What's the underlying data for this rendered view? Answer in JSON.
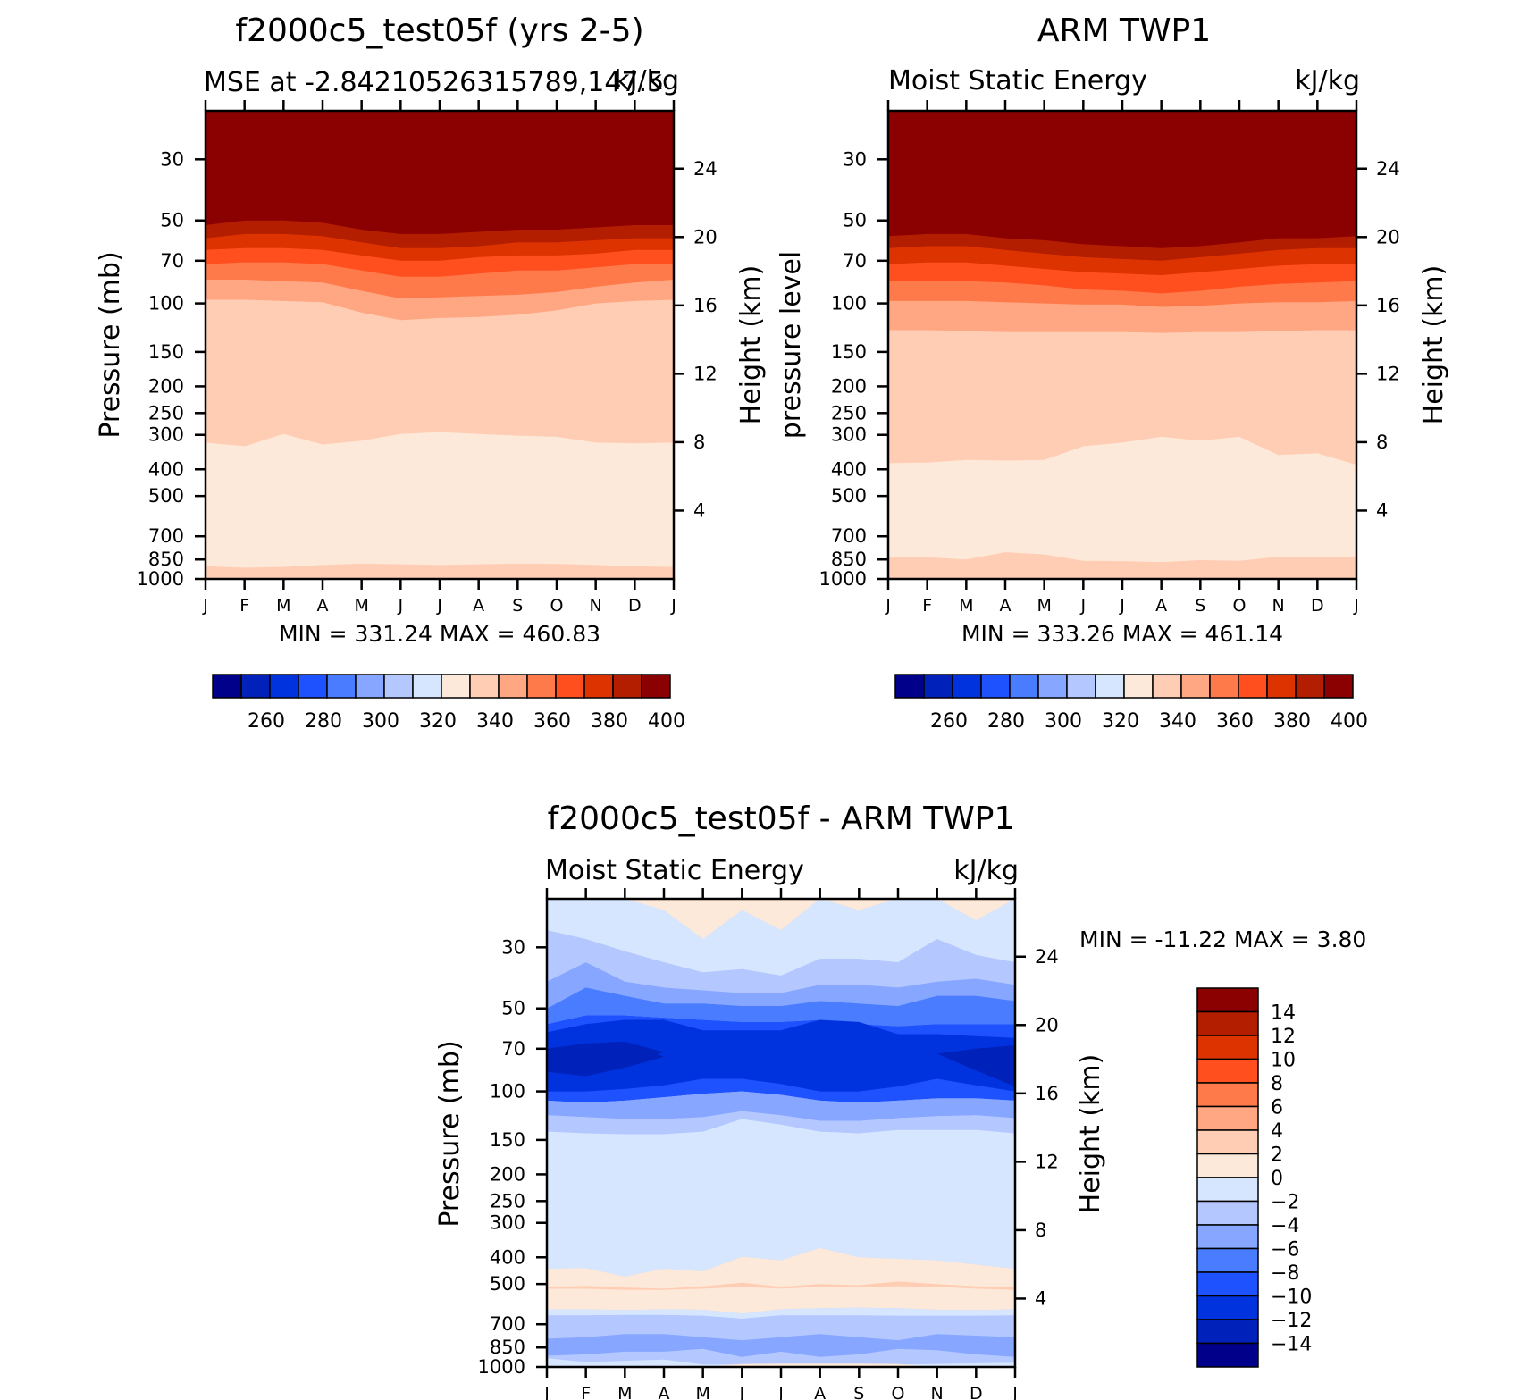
{
  "months": [
    "J",
    "F",
    "M",
    "A",
    "M",
    "J",
    "J",
    "A",
    "S",
    "O",
    "N",
    "D",
    "J"
  ],
  "pressure_ticks": [
    "30",
    "50",
    "70",
    "100",
    "150",
    "200",
    "250",
    "300",
    "400",
    "500",
    "700",
    "850",
    "1000"
  ],
  "height_ticks": [
    "24",
    "20",
    "16",
    "12",
    "8",
    "4"
  ],
  "colors": {
    "warm_scale": [
      "#00008b",
      "#0022bb",
      "#0033dd",
      "#1e52ff",
      "#4a7cff",
      "#86a6ff",
      "#b4c8ff",
      "#d6e6ff",
      "#fde9d9",
      "#ffcdb4",
      "#ffa682",
      "#ff7a4a",
      "#ff4f1e",
      "#dd3300",
      "#b31d00",
      "#8b0000"
    ],
    "diff_scale": [
      "#00008b",
      "#0022bb",
      "#0033dd",
      "#1e52ff",
      "#4a7cff",
      "#86a6ff",
      "#b4c8ff",
      "#d6e6ff",
      "#fde9d9",
      "#ffcdb4",
      "#ffa682",
      "#ff7a4a",
      "#ff4f1e",
      "#dd3300",
      "#b31d00",
      "#8b0000"
    ]
  },
  "chart_data": [
    {
      "type": "heatmap",
      "title": "f2000c5_test05f (yrs 2-5)",
      "subtitle_left": "MSE at -2.84210526315789,147.5",
      "subtitle_right": "kJ/kg",
      "ylabel": "Pressure (mb)",
      "ylabel_right": "Height (km)",
      "stats": "MIN = 331.24 MAX = 460.83",
      "colorbar_labels": [
        "260",
        "280",
        "300",
        "320",
        "340",
        "360",
        "380",
        "400"
      ],
      "boundaries_upper_to_lower": {
        "level_400": [
          52,
          50,
          50,
          51,
          54,
          56,
          56,
          55,
          54,
          54,
          53,
          52,
          52
        ],
        "level_390": [
          58,
          56,
          56,
          57,
          60,
          63,
          63,
          62,
          60,
          60,
          59,
          58,
          58
        ],
        "level_380": [
          64,
          63,
          63,
          64,
          67,
          70,
          70,
          68,
          67,
          67,
          66,
          64,
          64
        ],
        "level_370": [
          72,
          71,
          71,
          72,
          76,
          80,
          80,
          78,
          76,
          76,
          74,
          72,
          72
        ],
        "level_360": [
          82,
          82,
          83,
          84,
          90,
          96,
          95,
          94,
          93,
          91,
          87,
          84,
          82
        ],
        "level_340": [
          97,
          97,
          98,
          99,
          108,
          115,
          113,
          112,
          110,
          106,
          100,
          98,
          97
        ],
        "level_330": [
          320,
          330,
          298,
          325,
          315,
          298,
          293,
          298,
          302,
          305,
          320,
          322,
          320
        ],
        "level_320": [
          900,
          910,
          905,
          890,
          880,
          885,
          890,
          885,
          880,
          882,
          890,
          900,
          905
        ]
      }
    },
    {
      "type": "heatmap",
      "title": "ARM TWP1",
      "subtitle_left": "Moist Static Energy",
      "subtitle_right": "kJ/kg",
      "ylabel": "pressure level",
      "ylabel_right": "Height (km)",
      "stats": "MIN = 333.26 MAX = 461.14",
      "colorbar_labels": [
        "260",
        "280",
        "300",
        "320",
        "340",
        "360",
        "380",
        "400"
      ],
      "boundaries_upper_to_lower": {
        "level_400": [
          57,
          56,
          56,
          58,
          59,
          61,
          62,
          63,
          62,
          60,
          58,
          58,
          57
        ],
        "level_390": [
          63,
          62,
          62,
          64,
          66,
          68,
          69,
          70,
          68,
          66,
          64,
          63,
          63
        ],
        "level_380": [
          72,
          71,
          71,
          73,
          75,
          77,
          78,
          79,
          77,
          75,
          73,
          72,
          72
        ],
        "level_370": [
          83,
          83,
          83,
          84,
          86,
          89,
          90,
          92,
          90,
          87,
          85,
          84,
          83
        ],
        "level_360": [
          98,
          98,
          98,
          99,
          100,
          101,
          101,
          103,
          102,
          100,
          99,
          99,
          98
        ],
        "level_340": [
          125,
          125,
          126,
          127,
          127,
          127,
          127,
          128,
          127,
          127,
          126,
          125,
          125
        ],
        "level_330": [
          380,
          378,
          370,
          372,
          370,
          330,
          320,
          305,
          315,
          305,
          355,
          350,
          385
        ],
        "level_320": [
          835,
          835,
          850,
          800,
          815,
          860,
          862,
          870,
          855,
          860,
          830,
          830,
          830
        ]
      }
    },
    {
      "type": "heatmap",
      "title": "f2000c5_test05f - ARM TWP1",
      "subtitle_left": "Moist Static Energy",
      "subtitle_right": "kJ/kg",
      "ylabel": "Pressure (mb)",
      "ylabel_right": "Height (km)",
      "stats": "MIN = -11.22 MAX = 3.80",
      "colorbar_labels": [
        "14",
        "12",
        "10",
        "8",
        "6",
        "4",
        "2",
        "0",
        "-2",
        "-4",
        "-6",
        "-8",
        "-10",
        "-12",
        "-14"
      ],
      "bands": [
        {
          "label": "0 to 2",
          "top_mb": 20,
          "note": "peaks along top edge near M, J, D"
        },
        {
          "label": "-2 to 0",
          "top_mb": 28,
          "bottom_mb": 40
        },
        {
          "label": "-4 to -2",
          "top_mb": 35,
          "bottom_mb": 46
        },
        {
          "label": "-6 to -4",
          "top_mb": 42,
          "bottom_mb": 55
        },
        {
          "label": "-8 to -6",
          "top_mb": 50,
          "bottom_mb": 110
        },
        {
          "label": "-10 to -8",
          "top_mb": 55,
          "bottom_mb": 100
        },
        {
          "label": "-12 to -10",
          "note": "cores near F and D at 70-85 mb"
        },
        {
          "label": "-2 to 0",
          "top_mb": 140,
          "bottom_mb": 450
        },
        {
          "label": "0 to 2",
          "top_mb": 450,
          "bottom_mb": 620
        },
        {
          "label": "-4 to -2",
          "top_mb": 650,
          "bottom_mb": 950
        },
        {
          "label": "0 to 2",
          "top_mb": 970,
          "bottom_mb": 1000,
          "note": "near J to O at surface"
        }
      ]
    }
  ]
}
